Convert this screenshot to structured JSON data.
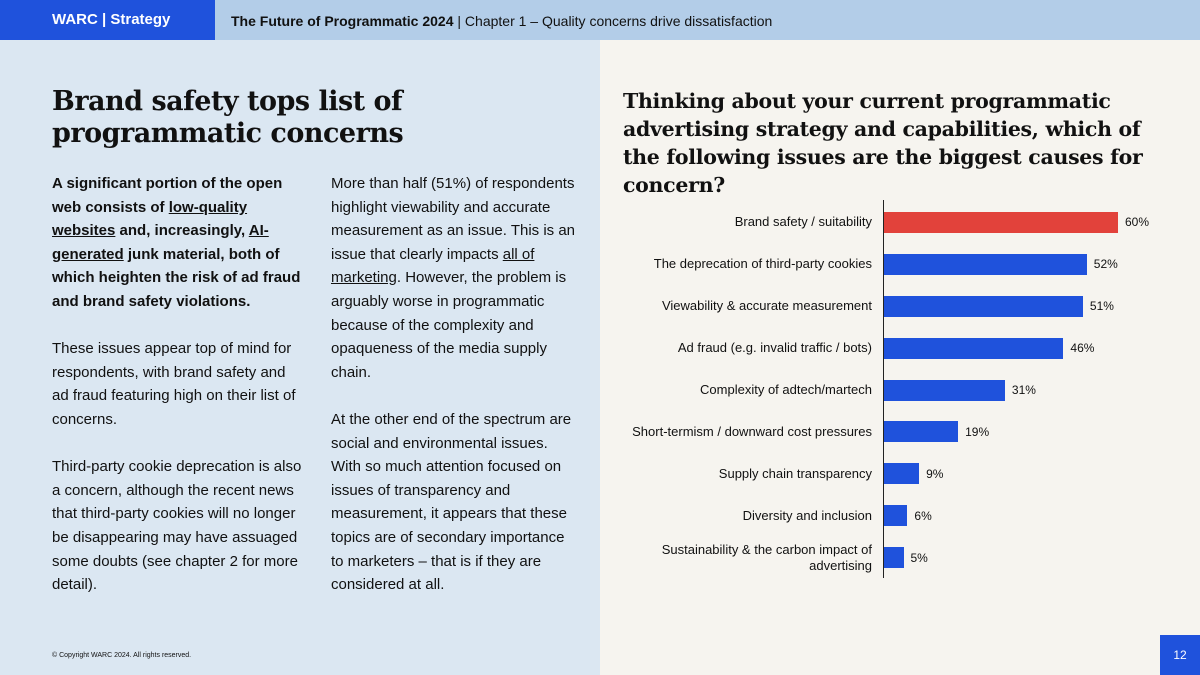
{
  "header": {
    "brand": "WARC | Strategy",
    "report": "The Future of Programmatic 2024",
    "chapter": "| Chapter 1 – Quality concerns drive dissatisfaction"
  },
  "left": {
    "title": "Brand safety tops list of programmatic concerns",
    "col1": [
      {
        "bold": true,
        "runs": [
          "A significant portion of the open web consists of ",
          {
            "text": "low-quality websites",
            "link": true
          },
          " and, increasingly, ",
          {
            "text": "AI-generated",
            "link": true
          },
          " junk material, both of which heighten the risk of ad fraud and brand safety violations."
        ]
      },
      {
        "bold": false,
        "runs": [
          "These issues appear top of mind for respondents, with brand safety and ad fraud featuring high on their list of concerns."
        ]
      },
      {
        "bold": false,
        "runs": [
          "Third-party cookie deprecation is also a concern, although the recent news that third-party cookies will no longer be disappearing may have assuaged some doubts (see chapter 2 for more detail)."
        ]
      }
    ],
    "col2": [
      {
        "bold": false,
        "runs": [
          "More than half (51%) of respondents highlight viewability and accurate measurement as an issue. This is an issue that clearly impacts ",
          {
            "text": "all of marketing",
            "link": true
          },
          ". However, the problem is arguably worse in programmatic because of the complexity and opaqueness of the media supply chain."
        ]
      },
      {
        "bold": false,
        "runs": [
          "At the other end of the spectrum are social and environmental issues. With so much attention focused on issues of transparency and measurement, it appears that these topics are of secondary importance to marketers – that is if they are considered at all."
        ]
      }
    ]
  },
  "chart_data": {
    "type": "bar",
    "orientation": "horizontal",
    "title": "Thinking about your current programmatic advertising strategy and capabilities, which of the following issues are the biggest causes for concern?",
    "categories": [
      "Brand safety / suitability",
      "The deprecation of third-party cookies",
      "Viewability & accurate measurement",
      "Ad fraud (e.g. invalid traffic / bots)",
      "Complexity of adtech/martech",
      "Short-termism / downward cost pressures",
      "Supply chain transparency",
      "Diversity and inclusion",
      "Sustainability & the carbon impact of advertising"
    ],
    "values": [
      60,
      52,
      51,
      46,
      31,
      19,
      9,
      6,
      5
    ],
    "value_labels": [
      "60%",
      "52%",
      "51%",
      "46%",
      "31%",
      "19%",
      "9%",
      "6%",
      "5%"
    ],
    "colors": [
      "#e2423b",
      "#1f52dc",
      "#1f52dc",
      "#1f52dc",
      "#1f52dc",
      "#1f52dc",
      "#1f52dc",
      "#1f52dc",
      "#1f52dc"
    ]
  },
  "footer": {
    "copyright": "© Copyright WARC 2024. All rights reserved.",
    "page": "12"
  }
}
